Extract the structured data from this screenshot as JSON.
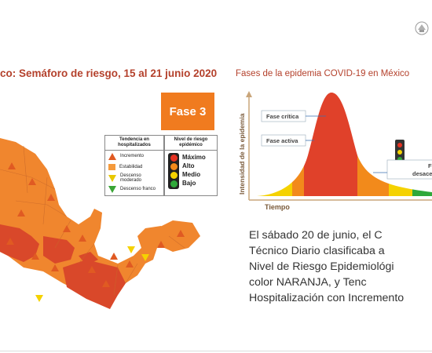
{
  "left": {
    "title": "co: Semáforo de riesgo, 15 al 21 junio 2020",
    "phase_badge": "Fase 3",
    "trend_legend": {
      "heading_line1": "Tendencia en",
      "heading_line2": "hospitalizados",
      "items": [
        "Incremento",
        "Estabilidad",
        "Descenso moderado",
        "Descenso franco"
      ]
    },
    "level_legend": {
      "heading_line1": "Nivel de riesgo",
      "heading_line2": "epidémico",
      "items": [
        "Máximo",
        "Alto",
        "Medio",
        "Bajo"
      ],
      "colors": [
        "#e53222",
        "#f28a1b",
        "#f5d200",
        "#2fa83a"
      ]
    }
  },
  "right": {
    "title": "Fases de la epidemia COVID-19 en México",
    "chart": {
      "y_axis_label": "Intensidad de la epidemia",
      "x_axis_label": "Tiempo",
      "annotation_critical": "Fase crítica",
      "annotation_active": "Fase activa",
      "annotation_decline_line1": "F",
      "annotation_decline_line2": "desace"
    },
    "paragraph": [
      "El sábado 20 de junio, el C",
      "Técnico Diario  clasificaba a ",
      "Nivel de Riesgo Epidemiológi",
      "color   NARANJA,   y   Tenc",
      "Hospitalización con Incremento"
    ]
  },
  "colors": {
    "accent_title": "#b4412c",
    "phase_orange": "#f07b1f",
    "map_orange": "#f0862e",
    "map_red": "#d9482a"
  }
}
